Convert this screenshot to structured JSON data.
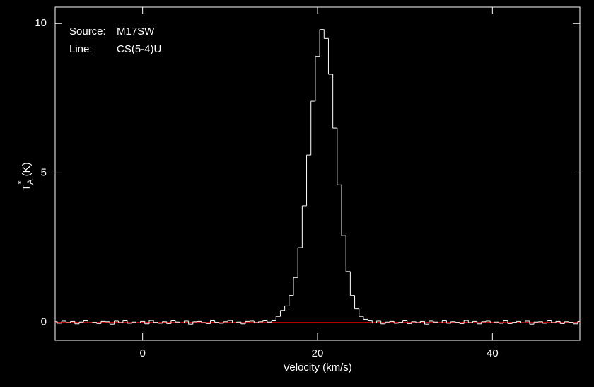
{
  "chart_data": {
    "type": "step",
    "xlabel": "Velocity (km/s)",
    "ylabel": {
      "symbol": "T",
      "sub": "A",
      "sup": "*",
      "unit": "(K)"
    },
    "annotations": [
      {
        "label": "Source:",
        "value": "M17SW"
      },
      {
        "label": "Line:",
        "value": "CS(5-4)U"
      }
    ],
    "xlim": [
      -10,
      50
    ],
    "ylim": [
      -0.6,
      10.55
    ],
    "xticks": [
      0,
      20,
      40
    ],
    "yticks": [
      0,
      5,
      10
    ],
    "baseline": {
      "value": 0,
      "color": "#d00000"
    },
    "color": "#ffffff",
    "x": [
      -10,
      -9.5,
      -9,
      -8.5,
      -8,
      -7.5,
      -7,
      -6.5,
      -6,
      -5.5,
      -5,
      -4.5,
      -4,
      -3.5,
      -3,
      -2.5,
      -2,
      -1.5,
      -1,
      -0.5,
      0,
      0.5,
      1,
      1.5,
      2,
      2.5,
      3,
      3.5,
      4,
      4.5,
      5,
      5.5,
      6,
      6.5,
      7,
      7.5,
      8,
      8.5,
      9,
      9.5,
      10,
      10.5,
      11,
      11.5,
      12,
      12.5,
      13,
      13.5,
      14,
      14.5,
      15,
      15.5,
      16,
      16.5,
      17,
      17.5,
      18,
      18.5,
      19,
      19.5,
      20,
      20.5,
      21,
      21.5,
      22,
      22.5,
      23,
      23.5,
      24,
      24.5,
      25,
      25.5,
      26,
      26.5,
      27,
      27.5,
      28,
      28.5,
      29,
      29.5,
      30,
      30.5,
      31,
      31.5,
      32,
      32.5,
      33,
      33.5,
      34,
      34.5,
      35,
      35.5,
      36,
      36.5,
      37,
      37.5,
      38,
      38.5,
      39,
      39.5,
      40,
      40.5,
      41,
      41.5,
      42,
      42.5,
      43,
      43.5,
      44,
      44.5,
      45,
      45.5,
      46,
      46.5,
      47,
      47.5,
      48,
      48.5,
      49,
      49.5,
      50
    ],
    "values": [
      0.02,
      -0.03,
      0.04,
      -0.01,
      0.03,
      -0.05,
      0.01,
      0.05,
      -0.02,
      0.0,
      -0.04,
      0.03,
      0.02,
      -0.06,
      0.04,
      -0.01,
      0.05,
      -0.03,
      0.01,
      -0.02,
      0.03,
      -0.05,
      0.06,
      0.0,
      -0.03,
      0.02,
      -0.04,
      0.05,
      0.01,
      -0.02,
      0.04,
      -0.06,
      0.02,
      0.03,
      -0.01,
      -0.04,
      0.05,
      0.0,
      -0.03,
      0.02,
      0.06,
      -0.02,
      0.01,
      -0.05,
      0.03,
      0.04,
      -0.01,
      0.02,
      0.05,
      0.01,
      0.05,
      0.2,
      0.4,
      0.55,
      0.9,
      1.5,
      2.5,
      3.9,
      5.6,
      7.4,
      8.9,
      9.8,
      9.5,
      8.3,
      6.5,
      4.6,
      2.9,
      1.7,
      0.9,
      0.45,
      0.2,
      0.1,
      0.05,
      -0.02,
      0.04,
      -0.05,
      0.01,
      0.03,
      -0.03,
      0.0,
      0.05,
      -0.04,
      0.02,
      -0.01,
      0.03,
      -0.06,
      0.04,
      0.01,
      -0.02,
      0.05,
      -0.03,
      0.02,
      0.0,
      -0.04,
      0.06,
      -0.01,
      0.03,
      -0.05,
      0.02,
      0.04,
      -0.02,
      0.01,
      -0.03,
      0.05,
      -0.04,
      0.0,
      0.03,
      -0.02,
      0.04,
      -0.06,
      0.01,
      0.02,
      -0.03,
      0.05,
      -0.01,
      0.03,
      -0.04,
      0.02,
      0.0,
      -0.05,
      0.03
    ]
  }
}
